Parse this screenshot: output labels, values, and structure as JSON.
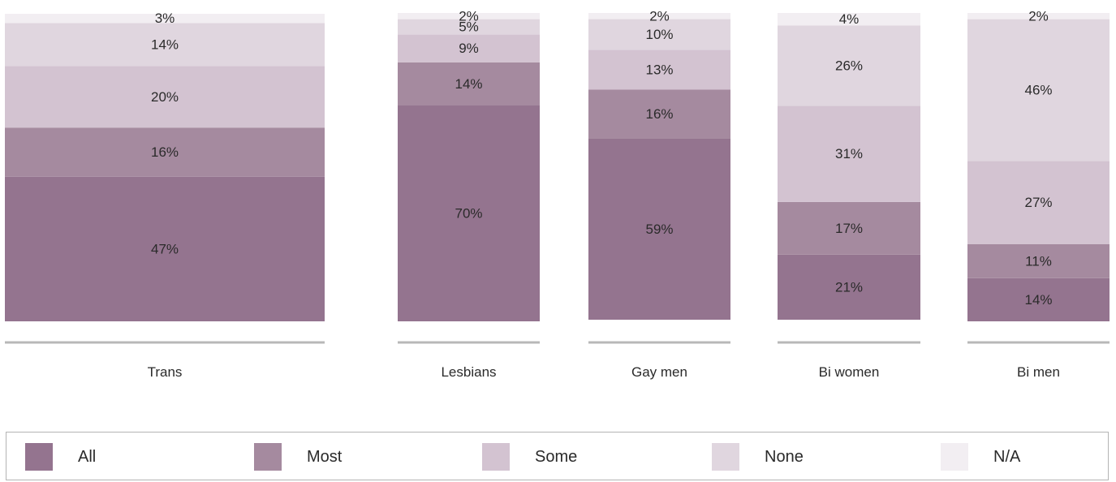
{
  "chart_data": {
    "type": "bar",
    "stacked": true,
    "categories": [
      "Trans",
      "Lesbians",
      "Gay men",
      "Bi women",
      "Bi men"
    ],
    "series": [
      {
        "name": "All",
        "color": "#94748f",
        "values": [
          47,
          70,
          59,
          21,
          14
        ]
      },
      {
        "name": "Most",
        "color": "#a58a9f",
        "values": [
          16,
          14,
          16,
          17,
          11
        ]
      },
      {
        "name": "Some",
        "color": "#d3c3d1",
        "values": [
          20,
          9,
          13,
          31,
          27
        ]
      },
      {
        "name": "None",
        "color": "#e0d6df",
        "values": [
          14,
          5,
          10,
          26,
          46
        ]
      },
      {
        "name": "N/A",
        "color": "#f2eef2",
        "values": [
          3,
          2,
          2,
          4,
          2
        ]
      }
    ],
    "data_labels": [
      [
        "47%",
        "16%",
        "20%",
        "14%",
        "3%"
      ],
      [
        "70%",
        "14%",
        "9%",
        "5%",
        "2%"
      ],
      [
        "59%",
        "16%",
        "13%",
        "10%",
        "2%"
      ],
      [
        "21%",
        "17%",
        "31%",
        "26%",
        "4%"
      ],
      [
        "14%",
        "11%",
        "27%",
        "46%",
        "2%"
      ]
    ],
    "title": "",
    "xlabel": "",
    "ylabel": "",
    "ylim": [
      0,
      100
    ],
    "grid": false,
    "legend_position": "bottom"
  }
}
